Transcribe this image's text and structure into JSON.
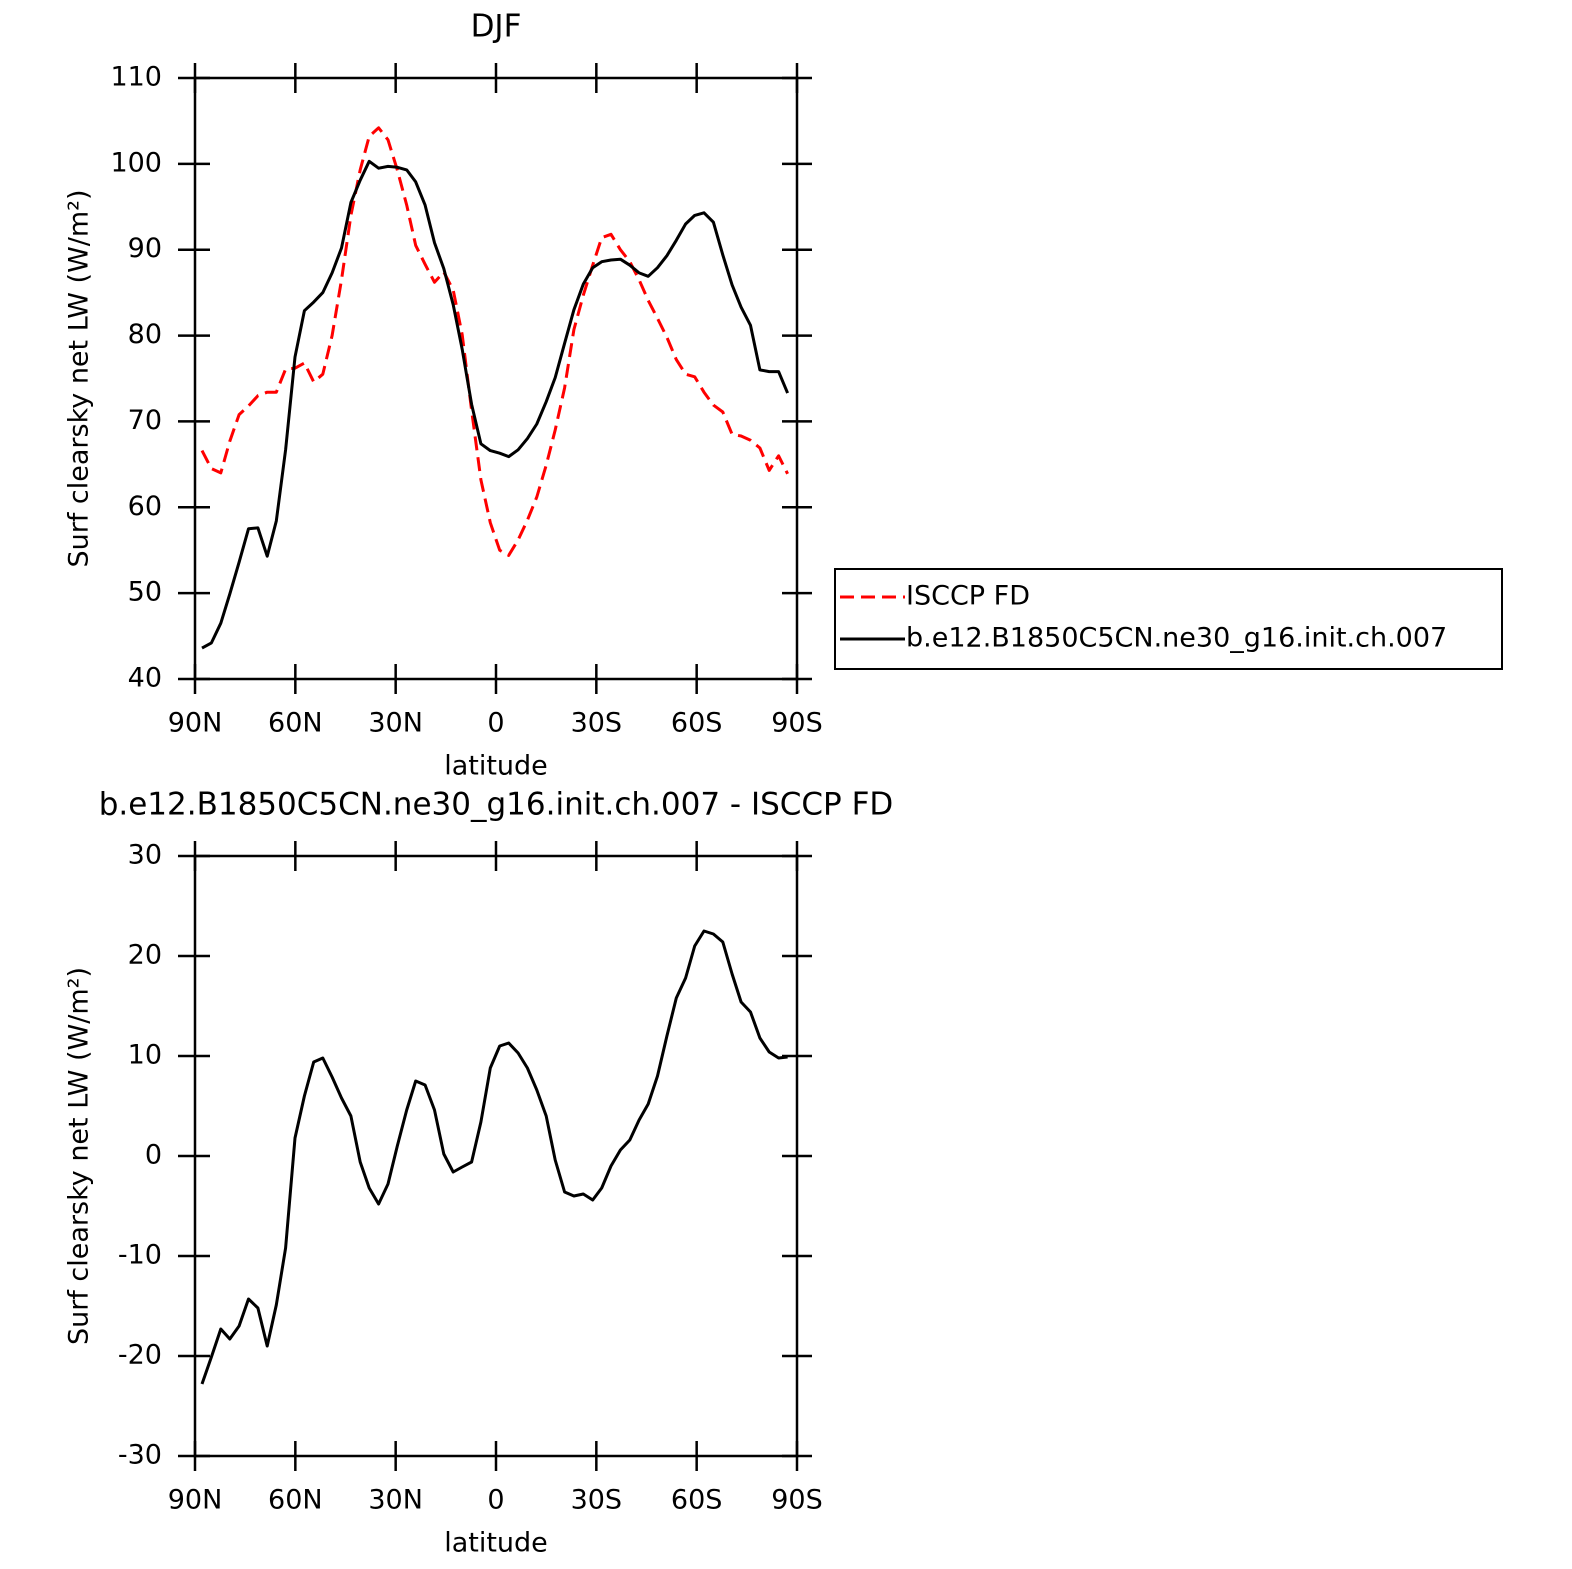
{
  "chart_data": [
    {
      "type": "line",
      "title": "DJF",
      "xlabel": "latitude",
      "ylabel": "Surf clearsky net LW (W/m²)",
      "x": [
        87.9,
        85.1,
        82.3,
        79.6,
        76.8,
        74.0,
        71.2,
        68.4,
        65.7,
        62.9,
        60.1,
        57.3,
        54.5,
        51.8,
        49.0,
        46.2,
        43.4,
        40.6,
        37.9,
        35.1,
        32.3,
        29.5,
        26.7,
        24.0,
        21.2,
        18.4,
        15.6,
        12.8,
        10.1,
        7.3,
        4.5,
        1.7,
        -1.1,
        -3.8,
        -6.6,
        -9.4,
        -12.2,
        -15.0,
        -17.7,
        -20.5,
        -23.3,
        -26.1,
        -28.9,
        -31.6,
        -34.4,
        -37.2,
        -40.0,
        -42.8,
        -45.5,
        -48.3,
        -51.1,
        -53.9,
        -56.7,
        -59.4,
        -62.2,
        -65.0,
        -67.8,
        -70.6,
        -73.3,
        -76.1,
        -78.9,
        -81.7,
        -84.5,
        -87.2
      ],
      "series": [
        {
          "name": "ISCCP FD",
          "color": "#ff0000",
          "line_style": "dashed",
          "values": [
            66.6,
            64.5,
            64.0,
            67.7,
            70.8,
            71.8,
            73.0,
            73.4,
            73.4,
            76.1,
            76.2,
            76.8,
            74.6,
            75.5,
            80.0,
            86.5,
            94.0,
            99.3,
            103.2,
            104.2,
            102.8,
            99.3,
            95.2,
            90.5,
            88.3,
            86.2,
            87.4,
            85.3,
            80.1,
            71.3,
            63.2,
            58.2,
            55.0,
            54.4,
            56.2,
            58.5,
            61.2,
            64.9,
            69.0,
            73.9,
            80.7,
            84.7,
            88.2,
            91.4,
            91.8,
            90.0,
            88.6,
            86.5,
            84.1,
            82.0,
            79.8,
            77.2,
            75.5,
            75.2,
            73.4,
            71.9,
            71.1,
            68.5,
            68.3,
            67.8,
            66.9,
            64.3,
            66.0,
            63.9
          ]
        },
        {
          "name": "b.e12.B1850C5CN.ne30_g16.init.ch.007",
          "color": "#000000",
          "line_style": "solid",
          "values": [
            43.6,
            44.2,
            46.5,
            49.9,
            53.6,
            57.5,
            57.6,
            54.3,
            58.4,
            66.7,
            77.5,
            82.9,
            83.9,
            85.0,
            87.3,
            90.2,
            95.5,
            98.1,
            100.3,
            99.5,
            99.7,
            99.6,
            99.3,
            97.9,
            95.2,
            90.8,
            87.8,
            83.6,
            78.4,
            72.0,
            67.4,
            66.6,
            66.3,
            65.9,
            66.7,
            68.0,
            69.7,
            72.3,
            75.1,
            79.1,
            83.0,
            86.0,
            87.9,
            88.6,
            88.8,
            88.9,
            88.2,
            87.3,
            86.9,
            87.9,
            89.3,
            91.1,
            93.0,
            94.0,
            94.3,
            93.2,
            89.4,
            85.9,
            83.3,
            81.2,
            76.0,
            75.8,
            75.8,
            73.3
          ]
        }
      ],
      "xlim": [
        90,
        -90
      ],
      "xticks": [
        {
          "value": 90,
          "label": "90N"
        },
        {
          "value": 60,
          "label": "60N"
        },
        {
          "value": 30,
          "label": "30N"
        },
        0,
        {
          "value": -30,
          "label": "30S"
        },
        {
          "value": -60,
          "label": "60S"
        },
        {
          "value": -90,
          "label": "90S"
        }
      ],
      "ylim": [
        40,
        110
      ],
      "yticks": [
        40,
        50,
        60,
        70,
        80,
        90,
        100,
        110
      ],
      "legend": "right"
    },
    {
      "type": "line",
      "title": "b.e12.B1850C5CN.ne30_g16.init.ch.007 - ISCCP FD",
      "xlabel": "latitude",
      "ylabel": "Surf clearsky net LW (W/m²)",
      "x": [
        87.9,
        85.1,
        82.3,
        79.6,
        76.8,
        74.0,
        71.2,
        68.4,
        65.7,
        62.9,
        60.1,
        57.3,
        54.5,
        51.8,
        49.0,
        46.2,
        43.4,
        40.6,
        37.9,
        35.1,
        32.3,
        29.5,
        26.7,
        24.0,
        21.2,
        18.4,
        15.6,
        12.8,
        10.1,
        7.3,
        4.5,
        1.7,
        -1.1,
        -3.8,
        -6.6,
        -9.4,
        -12.2,
        -15.0,
        -17.7,
        -20.5,
        -23.3,
        -26.1,
        -28.9,
        -31.6,
        -34.4,
        -37.2,
        -40.0,
        -42.8,
        -45.5,
        -48.3,
        -51.1,
        -53.9,
        -56.7,
        -59.4,
        -62.2,
        -65.0,
        -67.8,
        -70.6,
        -73.3,
        -76.1,
        -78.9,
        -81.7,
        -84.5,
        -87.2
      ],
      "series": [
        {
          "color": "#000000",
          "line_style": "solid",
          "values": [
            -22.8,
            -20.1,
            -17.3,
            -18.3,
            -17.0,
            -14.3,
            -15.2,
            -19.0,
            -14.9,
            -9.2,
            1.8,
            6.0,
            9.4,
            9.8,
            7.9,
            5.8,
            4.0,
            -0.6,
            -3.2,
            -4.8,
            -2.8,
            1.0,
            4.6,
            7.5,
            7.1,
            4.6,
            0.2,
            -1.6,
            -1.1,
            -0.6,
            3.4,
            8.8,
            11.0,
            11.3,
            10.3,
            8.8,
            6.6,
            4.0,
            -0.4,
            -3.6,
            -4.0,
            -3.8,
            -4.4,
            -3.2,
            -1.0,
            0.6,
            1.6,
            3.6,
            5.2,
            8.0,
            12.0,
            15.8,
            17.8,
            21.0,
            22.5,
            22.2,
            21.4,
            18.2,
            15.4,
            14.4,
            11.8,
            10.4,
            9.8,
            9.9
          ]
        }
      ],
      "xlim": [
        90,
        -90
      ],
      "xticks": [
        {
          "value": 90,
          "label": "90N"
        },
        {
          "value": 60,
          "label": "60N"
        },
        {
          "value": 30,
          "label": "30N"
        },
        0,
        {
          "value": -30,
          "label": "30S"
        },
        {
          "value": -60,
          "label": "60S"
        },
        {
          "value": -90,
          "label": "90S"
        }
      ],
      "ylim": [
        -30,
        30
      ],
      "yticks": [
        -30,
        -20,
        -10,
        0,
        10,
        20,
        30
      ]
    }
  ]
}
